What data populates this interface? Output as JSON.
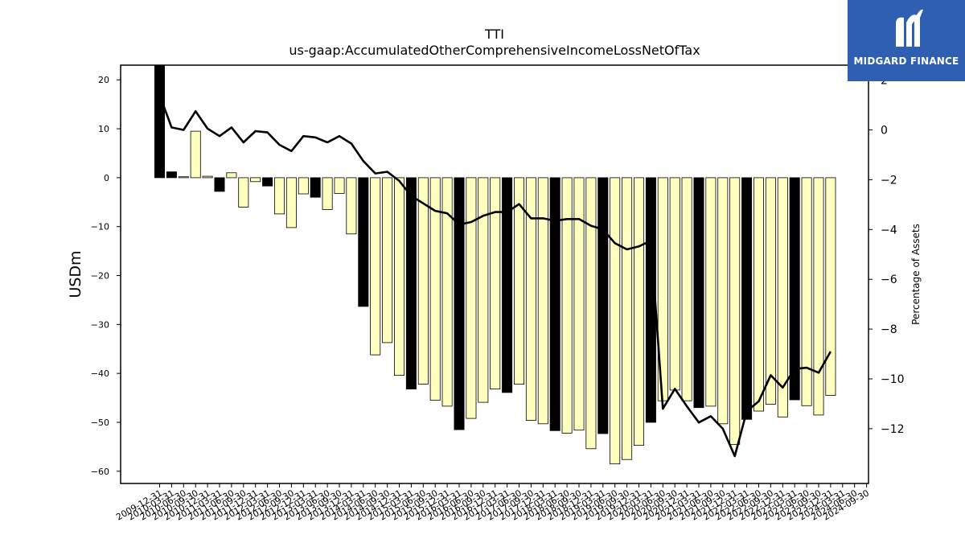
{
  "brand": {
    "name": "MIDGARD FINANCE",
    "bg_color": "#2f5fb0"
  },
  "chart_data": {
    "type": "bar",
    "title": "TTI",
    "subtitle": "us-gaap:AccumulatedOtherComprehensiveIncomeLossNetOfTax",
    "ylabel": "USDm",
    "y2label": "Percentage of Assets",
    "ylim": [
      -62.5,
      23
    ],
    "y2lim": [
      -14.2,
      2.6
    ],
    "yticks": [
      20,
      10,
      0,
      -10,
      -20,
      -30,
      -40,
      -50,
      -60
    ],
    "y2ticks": [
      2,
      0,
      -2,
      -4,
      -6,
      -8,
      -10,
      -12
    ],
    "colors": {
      "annual": "#000000",
      "quarter": "#ffffc0",
      "line": "#000000"
    },
    "categories": [
      "2009-12-31",
      "2010-03-31",
      "2010-06-30",
      "2010-09-30",
      "2010-12-31",
      "2011-03-31",
      "2011-06-30",
      "2011-09-30",
      "2011-12-31",
      "2012-03-31",
      "2012-06-30",
      "2012-09-30",
      "2012-12-31",
      "2013-03-31",
      "2013-06-30",
      "2013-09-30",
      "2013-12-31",
      "2014-03-31",
      "2014-06-30",
      "2014-09-30",
      "2014-12-31",
      "2015-03-31",
      "2015-06-30",
      "2015-09-30",
      "2015-12-31",
      "2016-03-31",
      "2016-06-30",
      "2016-09-30",
      "2016-12-31",
      "2017-03-31",
      "2017-06-30",
      "2017-09-30",
      "2017-12-31",
      "2018-03-31",
      "2018-06-30",
      "2018-09-30",
      "2018-12-31",
      "2019-03-31",
      "2019-06-30",
      "2019-09-30",
      "2019-12-31",
      "2020-03-31",
      "2020-06-30",
      "2020-09-30",
      "2020-12-31",
      "2021-03-31",
      "2021-06-30",
      "2021-09-30",
      "2021-12-31",
      "2022-03-31",
      "2022-06-30",
      "2022-09-30",
      "2022-12-31",
      "2023-03-31",
      "2023-06-30",
      "2023-09-30",
      "2023-12-31",
      "2024-03-31",
      "2024-06-30",
      "2024-09-30"
    ],
    "series": [
      {
        "kind": "bar",
        "values": [
          25.0,
          1.2,
          0.2,
          9.5,
          0.3,
          -2.8,
          1.0,
          -6.0,
          -0.8,
          -1.7,
          -7.4,
          -10.2,
          -3.3,
          -4.0,
          -6.5,
          -3.2,
          -11.5,
          -26.3,
          -36.2,
          -33.7,
          -40.4,
          -43.2,
          -42.2,
          -45.5,
          -46.7,
          -51.5,
          -49.2,
          -45.9,
          -43.2,
          -43.9,
          -42.2,
          -49.6,
          -50.3,
          -51.7,
          -52.2,
          -51.6,
          -55.4,
          -52.3,
          -58.5,
          -57.6,
          -54.7,
          -50.0,
          -45.6,
          -43.4,
          -45.6,
          -47.0,
          -46.7,
          -50.3,
          -54.5,
          -49.4,
          -47.7,
          -46.3,
          -48.9,
          -45.4,
          -46.6,
          -48.5,
          -44.5,
          null,
          null,
          null
        ],
        "annual_flags": [
          1,
          1,
          0,
          0,
          0,
          1,
          0,
          0,
          0,
          1,
          0,
          0,
          0,
          1,
          0,
          0,
          0,
          1,
          0,
          0,
          0,
          1,
          0,
          0,
          0,
          1,
          0,
          0,
          0,
          1,
          0,
          0,
          0,
          1,
          0,
          0,
          0,
          1,
          0,
          0,
          0,
          1,
          0,
          0,
          0,
          1,
          0,
          0,
          0,
          1,
          0,
          0,
          0,
          1,
          0,
          0,
          0,
          0,
          0,
          0
        ]
      },
      {
        "kind": "line",
        "values": [
          1.4,
          0.1,
          0.0,
          0.75,
          0.05,
          -0.25,
          0.1,
          -0.5,
          -0.05,
          -0.1,
          -0.6,
          -0.85,
          -0.25,
          -0.3,
          -0.5,
          -0.25,
          -0.55,
          -1.25,
          -1.75,
          -1.68,
          -2.05,
          -2.65,
          -2.95,
          -3.25,
          -3.35,
          -3.8,
          -3.7,
          -3.45,
          -3.3,
          -3.3,
          -2.98,
          -3.55,
          -3.55,
          -3.65,
          -3.58,
          -3.58,
          -3.85,
          -4.0,
          -4.55,
          -4.8,
          -4.68,
          -4.45,
          -11.2,
          -10.4,
          -11.1,
          -11.75,
          -11.5,
          -12.0,
          -13.1,
          -11.3,
          -10.9,
          -9.85,
          -10.35,
          -9.6,
          -9.55,
          -9.75,
          -8.9,
          null,
          null,
          null
        ]
      }
    ]
  }
}
